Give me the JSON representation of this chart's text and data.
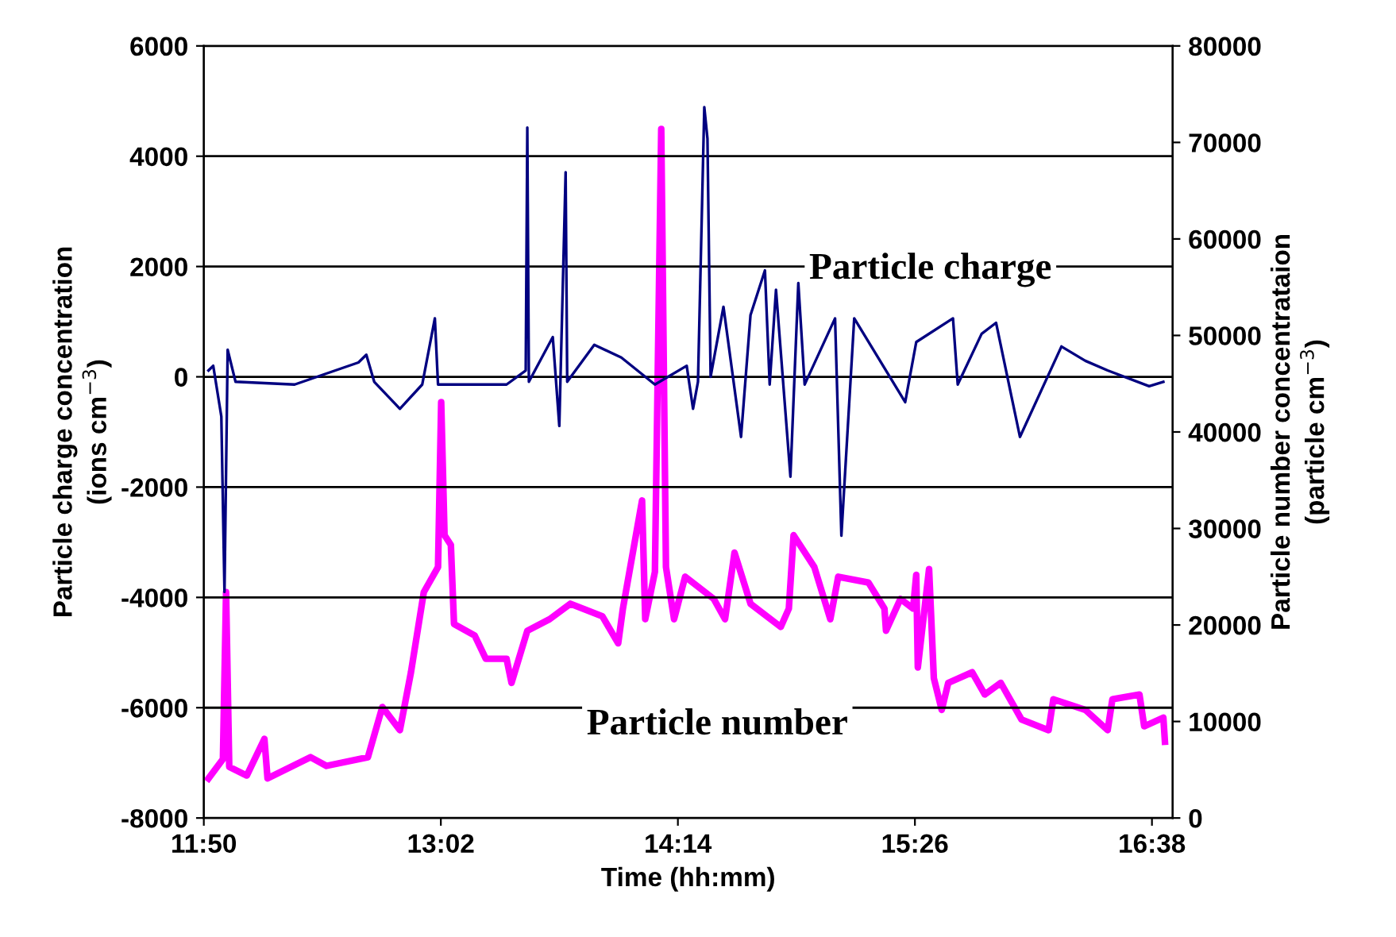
{
  "chart_data": {
    "type": "line",
    "xlabel": "Time (hh:mm)",
    "ylabel": "Particle charge concentration\n(ions cm$^{−3}$)",
    "y2label": "Particle number concentrataion\n(particle cm$^{−3}$)",
    "xlim": [
      11.8333,
      16.738
    ],
    "ylim": [
      -8000,
      6000
    ],
    "y2lim": [
      0,
      80000
    ],
    "xticks": [
      {
        "value": 11.8333,
        "label": "11:50"
      },
      {
        "value": 13.0333,
        "label": "13:02"
      },
      {
        "value": 14.2333,
        "label": "14:14"
      },
      {
        "value": 15.4333,
        "label": "15:26"
      },
      {
        "value": 16.6333,
        "label": "16:38"
      }
    ],
    "yticks": [
      -8000,
      -6000,
      -4000,
      -2000,
      0,
      2000,
      4000,
      6000
    ],
    "y2ticks": [
      0,
      10000,
      20000,
      30000,
      40000,
      50000,
      60000,
      70000,
      80000
    ],
    "grid": "y",
    "legend": false,
    "marker": "none",
    "line_style": "solid",
    "series": [
      {
        "name": "Particle charge",
        "color": "#000080",
        "x": [
          11.857,
          11.881,
          11.922,
          11.938,
          11.954,
          11.994,
          12.293,
          12.616,
          12.656,
          12.696,
          12.826,
          12.939,
          13.003,
          13.019,
          13.366,
          13.463,
          13.471,
          13.479,
          13.6,
          13.633,
          13.665,
          13.673,
          13.81,
          13.947,
          14.117,
          14.278,
          14.31,
          14.335,
          14.367,
          14.383,
          14.399,
          14.464,
          14.553,
          14.601,
          14.674,
          14.698,
          14.73,
          14.803,
          14.843,
          14.875,
          15.029,
          15.061,
          15.126,
          15.384,
          15.44,
          15.626,
          15.65,
          15.771,
          15.844,
          15.965,
          16.175,
          16.296,
          16.409,
          16.619,
          16.691
        ],
        "values": [
          115,
          200,
          -720,
          -3900,
          490,
          -90,
          -140,
          260,
          400,
          -90,
          -580,
          -140,
          1060,
          -140,
          -140,
          115,
          4520,
          -90,
          720,
          -890,
          3710,
          -90,
          580,
          350,
          -140,
          200,
          -580,
          -90,
          4890,
          4320,
          0,
          1270,
          -1090,
          1120,
          1930,
          -140,
          1580,
          -1810,
          1700,
          -140,
          1060,
          -2880,
          1060,
          -460,
          630,
          1060,
          -140,
          780,
          980,
          -1090,
          550,
          290,
          115,
          -170,
          -90
        ]
      },
      {
        "name": "Particle number",
        "color": "#ff00ff",
        "axis": "y2",
        "x": [
          11.857,
          11.93,
          11.946,
          11.962,
          12.051,
          12.14,
          12.156,
          12.374,
          12.454,
          12.664,
          12.737,
          12.826,
          12.882,
          12.947,
          13.019,
          13.035,
          13.052,
          13.084,
          13.1,
          13.205,
          13.261,
          13.366,
          13.391,
          13.471,
          13.584,
          13.689,
          13.851,
          13.931,
          13.955,
          14.052,
          14.068,
          14.117,
          14.149,
          14.173,
          14.214,
          14.27,
          14.415,
          14.472,
          14.52,
          14.601,
          14.754,
          14.795,
          14.819,
          14.924,
          15.005,
          15.045,
          15.198,
          15.279,
          15.287,
          15.36,
          15.424,
          15.44,
          15.448,
          15.505,
          15.529,
          15.569,
          15.602,
          15.723,
          15.787,
          15.868,
          15.973,
          16.11,
          16.134,
          16.296,
          16.409,
          16.433,
          16.57,
          16.594,
          16.691,
          16.699
        ],
        "values": [
          4100,
          6100,
          23400,
          5300,
          4400,
          8200,
          4100,
          6300,
          5400,
          6300,
          11500,
          9100,
          15100,
          23400,
          26000,
          43100,
          29300,
          28300,
          20100,
          18900,
          16500,
          16500,
          14000,
          19400,
          20600,
          22200,
          20900,
          18100,
          21700,
          32900,
          20600,
          25500,
          71400,
          26000,
          20600,
          25000,
          22700,
          20600,
          27500,
          22200,
          19800,
          21700,
          29300,
          26000,
          20600,
          25000,
          24400,
          21700,
          19400,
          22700,
          21700,
          25200,
          15600,
          25800,
          14500,
          11200,
          14000,
          15100,
          12800,
          14000,
          10200,
          9100,
          12300,
          11200,
          9100,
          12300,
          12800,
          9500,
          10400,
          7900
        ]
      }
    ]
  }
}
